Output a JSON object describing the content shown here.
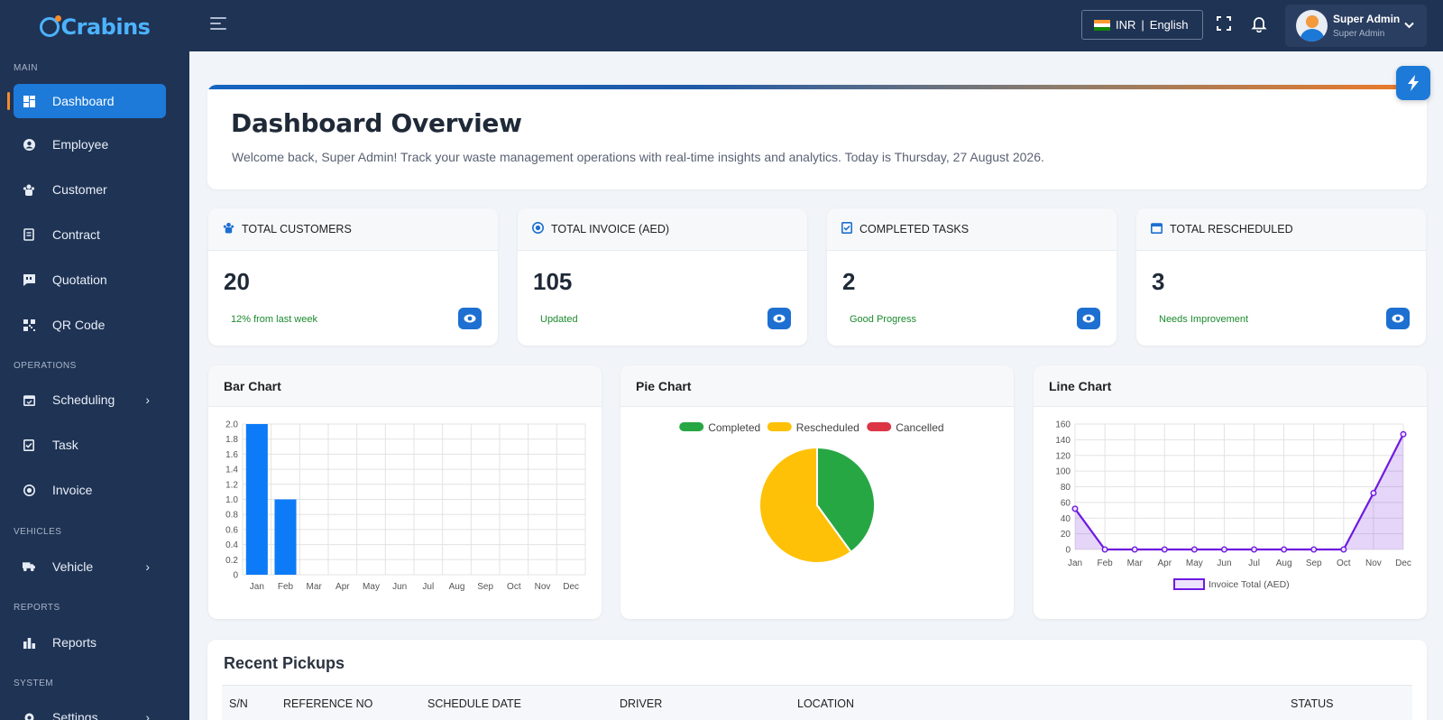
{
  "brand": {
    "name": "Crabins"
  },
  "sidebar": {
    "sections": [
      {
        "label": "MAIN",
        "items": [
          {
            "label": "Dashboard",
            "icon": "dashboard-icon",
            "active": true
          },
          {
            "label": "Employee",
            "icon": "user-circle-icon"
          },
          {
            "label": "Customer",
            "icon": "users-icon"
          },
          {
            "label": "Contract",
            "icon": "contract-icon"
          },
          {
            "label": "Quotation",
            "icon": "quote-icon"
          },
          {
            "label": "QR Code",
            "icon": "qr-code-icon"
          }
        ]
      },
      {
        "label": "OPERATIONS",
        "items": [
          {
            "label": "Scheduling",
            "icon": "calendar-icon",
            "expandable": true
          },
          {
            "label": "Task",
            "icon": "task-icon"
          },
          {
            "label": "Invoice",
            "icon": "invoice-icon"
          }
        ]
      },
      {
        "label": "VEHICLES",
        "items": [
          {
            "label": "Vehicle",
            "icon": "truck-icon",
            "expandable": true
          }
        ]
      },
      {
        "label": "REPORTS",
        "items": [
          {
            "label": "Reports",
            "icon": "reports-icon"
          }
        ]
      },
      {
        "label": "SYSTEM",
        "items": [
          {
            "label": "Settings",
            "icon": "settings-icon",
            "expandable": true
          }
        ]
      }
    ]
  },
  "topbar": {
    "currency": "INR",
    "separator": "|",
    "language": "English",
    "user_name": "Super Admin",
    "user_role": "Super Admin"
  },
  "welcome": {
    "title": "Dashboard Overview",
    "message": "Welcome back, Super Admin! Track your waste management operations with real-time insights and analytics.  Today is Thursday, 27 August 2026."
  },
  "stats": [
    {
      "label": "Total Customers",
      "value": "20",
      "sub": "12% from last week",
      "icon": "customers-icon"
    },
    {
      "label": "Total Invoice (AED)",
      "value": "105",
      "sub": "Updated",
      "icon": "invoice-icon"
    },
    {
      "label": "Completed Tasks",
      "value": "2",
      "sub": "Good Progress",
      "icon": "check-square-icon"
    },
    {
      "label": "Total Rescheduled",
      "value": "3",
      "sub": "Needs Improvement",
      "icon": "calendar-icon"
    }
  ],
  "chart_titles": {
    "bar": "Bar Chart",
    "pie": "Pie Chart",
    "line": "Line Chart"
  },
  "chart_data": [
    {
      "type": "bar",
      "categories": [
        "Jan",
        "Feb",
        "Mar",
        "Apr",
        "May",
        "Jun",
        "Jul",
        "Aug",
        "Sep",
        "Oct",
        "Nov",
        "Dec"
      ],
      "values": [
        2,
        1,
        0,
        0,
        0,
        0,
        0,
        0,
        0,
        0,
        0,
        0
      ],
      "ylim": [
        0,
        2
      ],
      "yticks": [
        "0",
        "0.2",
        "0.4",
        "0.6",
        "0.8",
        "1.0",
        "1.2",
        "1.4",
        "1.6",
        "1.8",
        "2.0"
      ],
      "color": "#0d7bf7",
      "grid": true
    },
    {
      "type": "pie",
      "labels": [
        "Completed",
        "Rescheduled",
        "Cancelled"
      ],
      "values": [
        2,
        3,
        0
      ],
      "colors": [
        "#27a744",
        "#ffc107",
        "#dc3545"
      ],
      "legend": "top"
    },
    {
      "type": "area",
      "categories": [
        "Jan",
        "Feb",
        "Mar",
        "Apr",
        "May",
        "Jun",
        "Jul",
        "Aug",
        "Sep",
        "Oct",
        "Nov",
        "Dec"
      ],
      "series": [
        {
          "name": "Invoice Total (AED)",
          "values": [
            52,
            0,
            0,
            0,
            0,
            0,
            0,
            0,
            0,
            0,
            72,
            147
          ]
        }
      ],
      "ylim": [
        0,
        160
      ],
      "yticks": [
        "0",
        "20",
        "40",
        "60",
        "80",
        "100",
        "120",
        "140",
        "160"
      ],
      "color": "#6f1ae0",
      "grid": true,
      "legend": "bottom"
    }
  ],
  "pickups": {
    "title": "Recent Pickups",
    "columns": [
      "S/N",
      "Reference No",
      "Schedule Date",
      "Driver",
      "Location",
      "Status"
    ]
  }
}
